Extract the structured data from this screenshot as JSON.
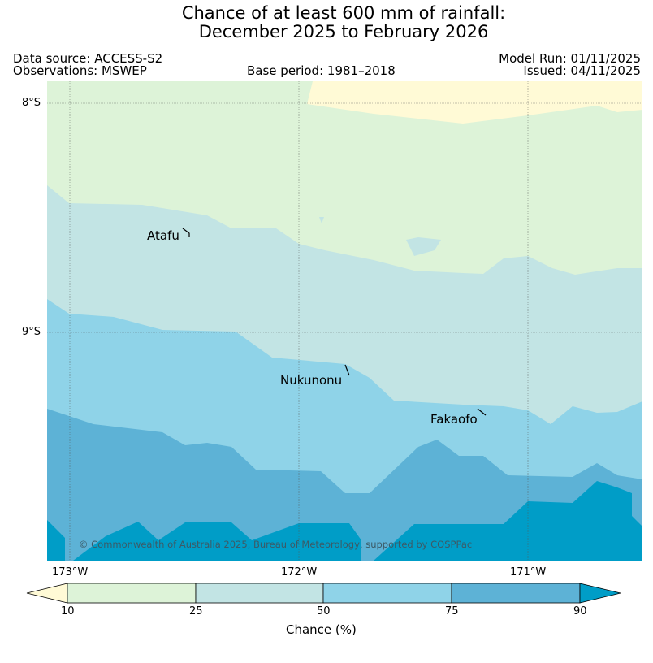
{
  "title": {
    "line1": "Chance of at least 600 mm of rainfall:",
    "line2": "December 2025 to February 2026"
  },
  "meta": {
    "data_source": "Data source: ACCESS-S2",
    "observations": "Observations: MSWEP",
    "base_period": "Base period: 1981–2018",
    "model_run": "Model Run: 01/11/2025",
    "issued": "Issued: 04/11/2025"
  },
  "map": {
    "lat_ticks": [
      "8°S",
      "9°S"
    ],
    "lon_ticks": [
      "173°W",
      "172°W",
      "171°W"
    ],
    "places": [
      "Atafu",
      "Nukunonu",
      "Fakaofo"
    ],
    "copyright": "© Commonwealth of Australia 2025, Bureau of Meteorology, supported by COSPPac"
  },
  "legend": {
    "label": "Chance (%)",
    "ticks": [
      "10",
      "25",
      "50",
      "75",
      "90"
    ],
    "colors": {
      "lt10": "#fffad6",
      "c10_25": "#ddf3d8",
      "c25_50": "#c2e4e4",
      "c50_75": "#8fd3e8",
      "c75_90": "#5db2d6",
      "gt90": "#009dc7"
    }
  }
}
